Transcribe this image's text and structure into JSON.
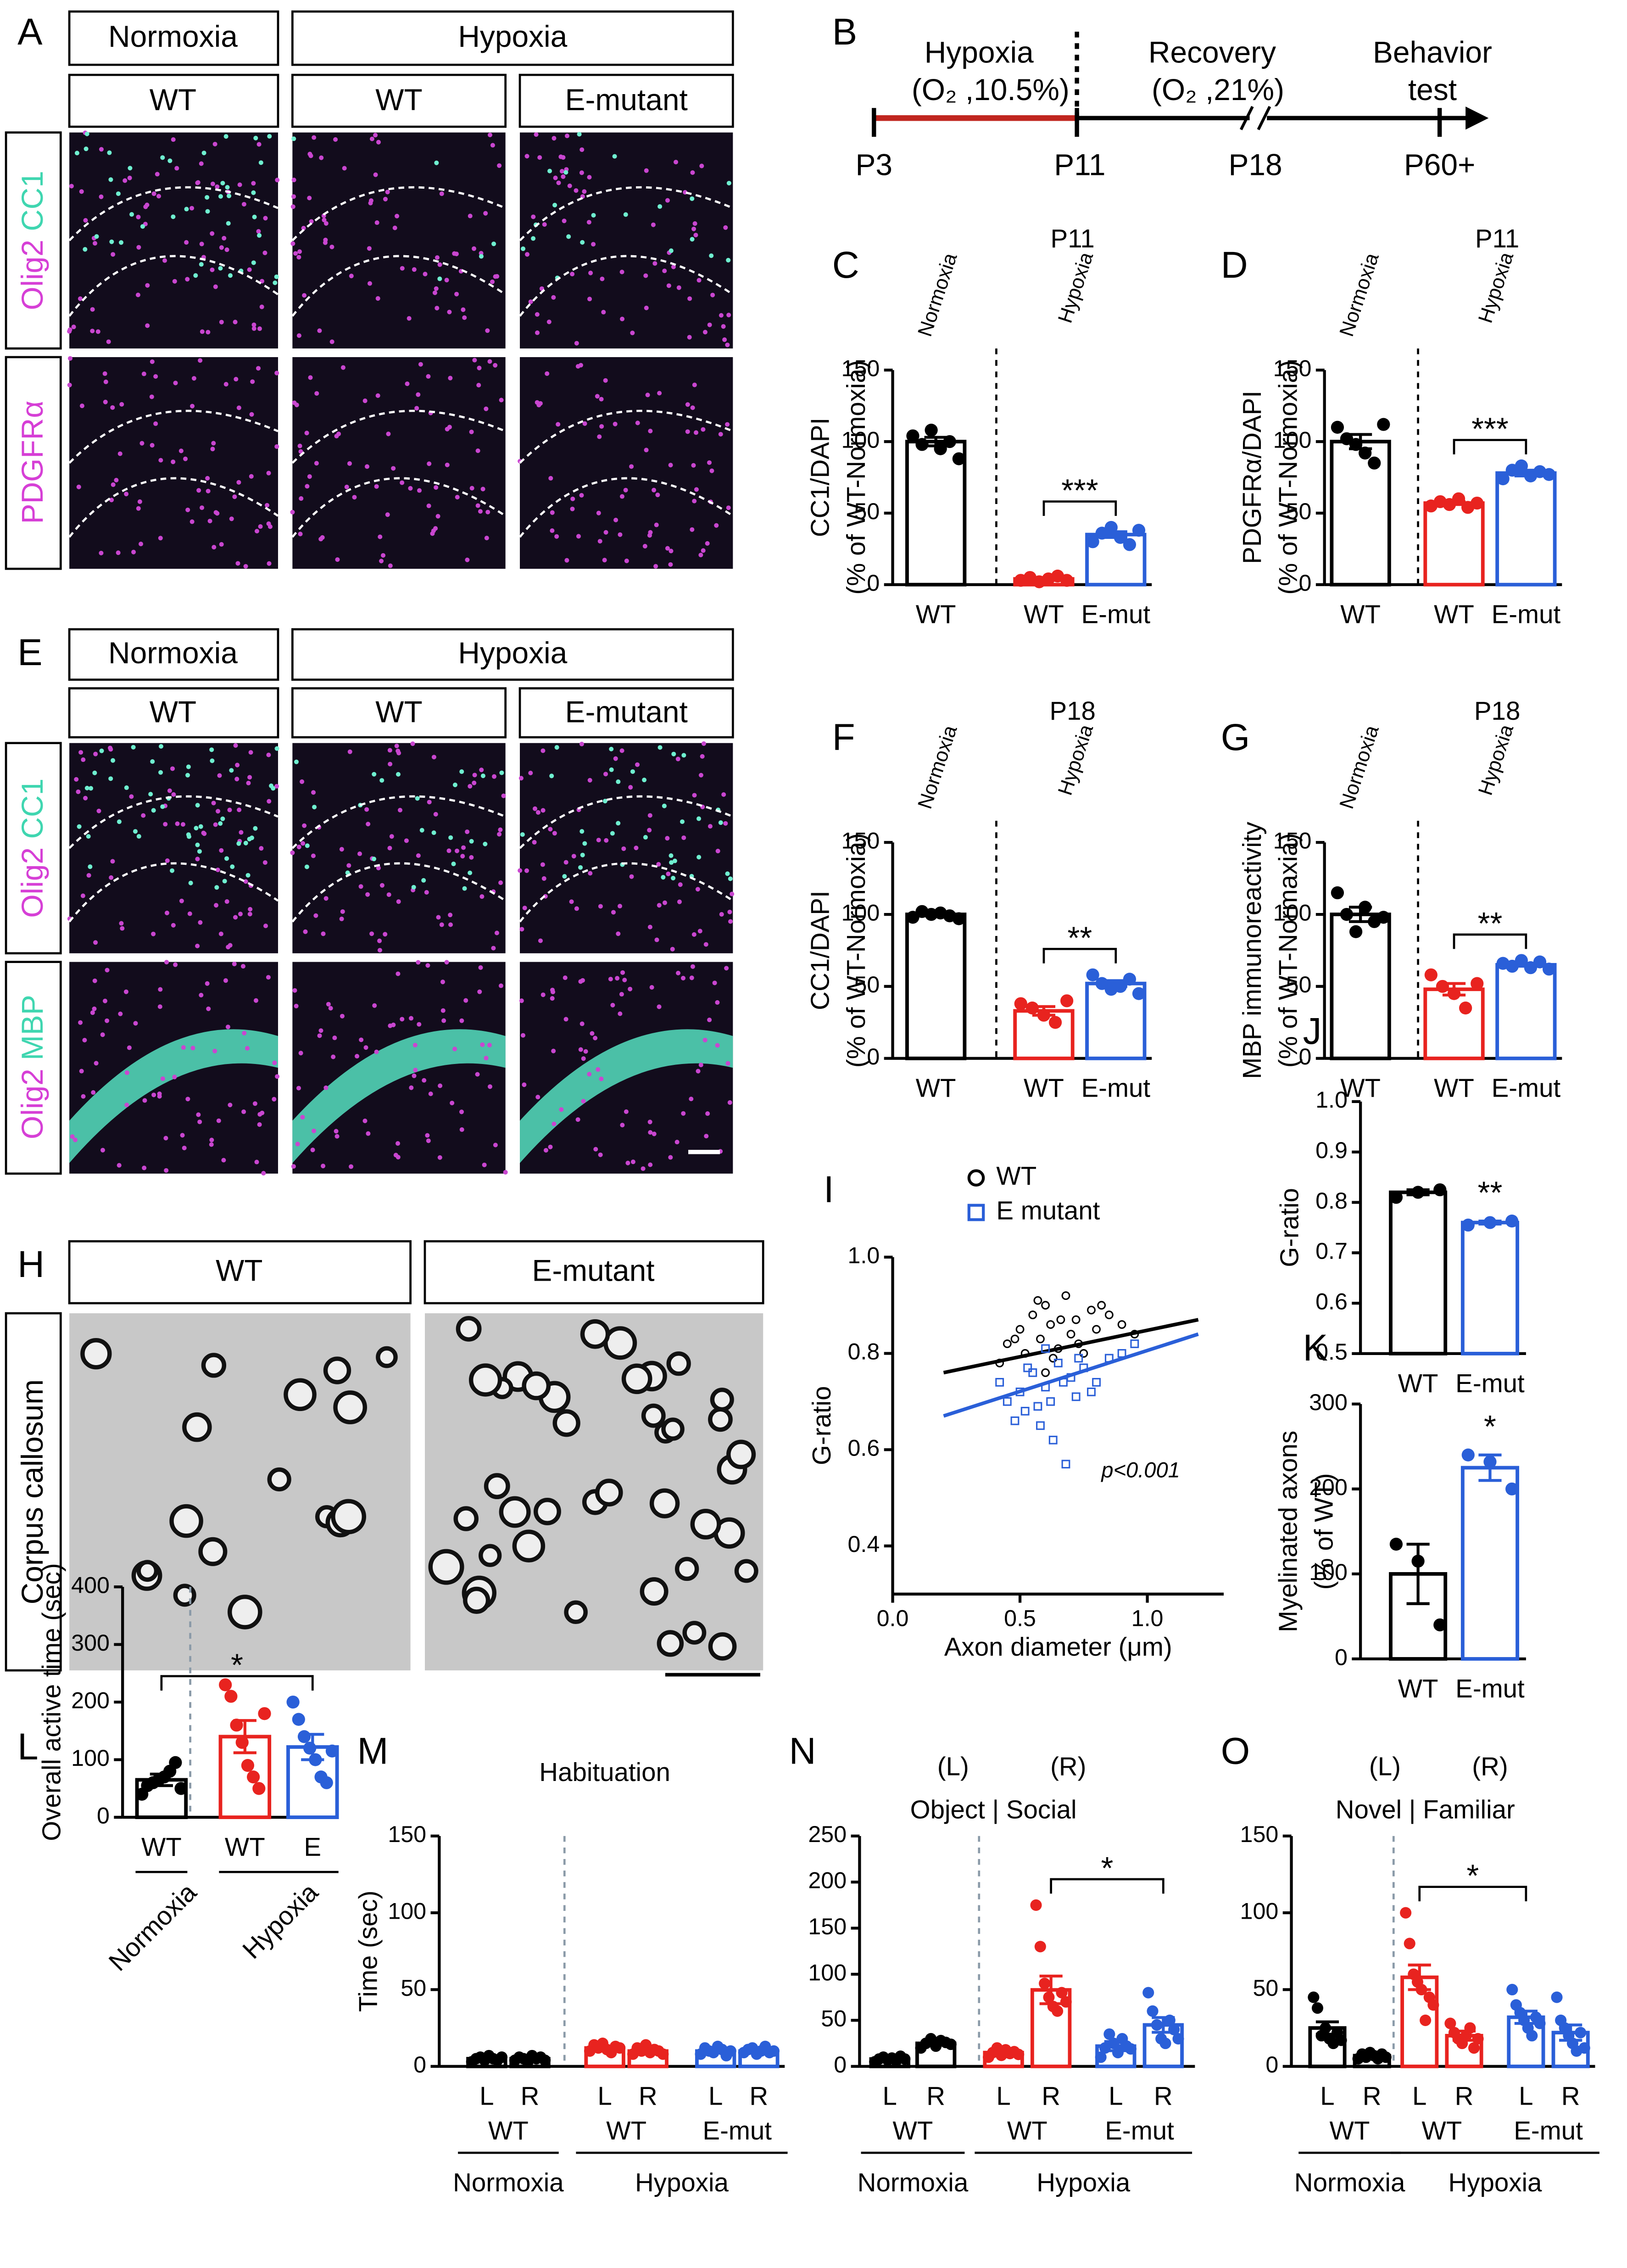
{
  "figure": {
    "A": {
      "label": "A",
      "headers": [
        "Normoxia",
        "Hypoxia"
      ],
      "subheaders": [
        "WT",
        "WT",
        "E-mutant"
      ],
      "rows": [
        [
          "Olig2",
          "CC1"
        ],
        [
          "PDGFRα"
        ]
      ]
    },
    "B": {
      "label": "B",
      "phases": [
        [
          "Hypoxia",
          "(O₂ ,10.5%)"
        ],
        [
          "Recovery",
          "(O₂ ,21%)"
        ],
        [
          "Behavior",
          "test"
        ]
      ],
      "days": [
        "P3",
        "P11",
        "P18",
        "P60+"
      ]
    },
    "E": {
      "label": "E",
      "headers": [
        "Normoxia",
        "Hypoxia"
      ],
      "subheaders": [
        "WT",
        "WT",
        "E-mutant"
      ],
      "rows": [
        [
          "Olig2",
          "CC1"
        ],
        [
          "Olig2",
          "MBP"
        ]
      ]
    },
    "H": {
      "label": "H",
      "headers": [
        "WT",
        "E-mutant"
      ],
      "side": "Corpus callosum"
    }
  },
  "chart_data": [
    {
      "type": "dotbar",
      "label": "C",
      "title": "P11",
      "ylabel": [
        "CC1/DAPI",
        "(% of WT-Normoxia)"
      ],
      "ylim": [
        0,
        150
      ],
      "yticks": [
        0,
        50,
        100,
        150
      ],
      "categories": [
        "WT",
        "WT",
        "E-mut"
      ],
      "conditions": [
        "Normoxia",
        "Hypoxia"
      ],
      "colors": [
        "#000000",
        "#e8231f",
        "#2a5fd8"
      ],
      "values": [
        100,
        4,
        35
      ],
      "errors": [
        3,
        1,
        2
      ],
      "points": [
        [
          104,
          98,
          108,
          95,
          100,
          88
        ],
        [
          3,
          5,
          2,
          4,
          6,
          3
        ],
        [
          30,
          36,
          40,
          33,
          28,
          38
        ]
      ],
      "significance": {
        "text": "***",
        "between": [
          1,
          2
        ]
      }
    },
    {
      "type": "dotbar",
      "label": "D",
      "title": "P11",
      "ylabel": [
        "PDGFRα/DAPI",
        "(% of WT-Normoxia)"
      ],
      "ylim": [
        0,
        150
      ],
      "yticks": [
        0,
        50,
        100,
        150
      ],
      "categories": [
        "WT",
        "WT",
        "E-mut"
      ],
      "conditions": [
        "Normoxia",
        "Hypoxia"
      ],
      "colors": [
        "#000000",
        "#e8231f",
        "#2a5fd8"
      ],
      "values": [
        100,
        57,
        78
      ],
      "errors": [
        5,
        1,
        2
      ],
      "points": [
        [
          110,
          102,
          98,
          92,
          85,
          112
        ],
        [
          55,
          58,
          56,
          60,
          54,
          57
        ],
        [
          74,
          80,
          83,
          76,
          79,
          77
        ]
      ],
      "significance": {
        "text": "***",
        "between": [
          1,
          2
        ]
      }
    },
    {
      "type": "dotbar",
      "label": "F",
      "title": "P18",
      "ylabel": [
        "CC1/DAPI",
        "(% of WT-Normoxia)"
      ],
      "ylim": [
        0,
        150
      ],
      "yticks": [
        0,
        50,
        100,
        150
      ],
      "categories": [
        "WT",
        "WT",
        "E-mut"
      ],
      "conditions": [
        "Normoxia",
        "Hypoxia"
      ],
      "colors": [
        "#000000",
        "#e8231f",
        "#2a5fd8"
      ],
      "values": [
        100,
        33,
        52
      ],
      "errors": [
        1,
        3,
        2
      ],
      "points": [
        [
          98,
          102,
          100,
          101,
          99,
          97
        ],
        [
          38,
          35,
          30,
          25,
          40
        ],
        [
          58,
          52,
          48,
          50,
          55,
          45
        ]
      ],
      "significance": {
        "text": "**",
        "between": [
          1,
          2
        ]
      }
    },
    {
      "type": "dotbar",
      "label": "G",
      "title": "P18",
      "ylabel": [
        "MBP immunoreactivity",
        "(% of WT-Normaxia)"
      ],
      "ylim": [
        0,
        150
      ],
      "yticks": [
        0,
        50,
        100,
        150
      ],
      "categories": [
        "WT",
        "WT",
        "E-mut"
      ],
      "conditions": [
        "Normoxia",
        "Hypoxia"
      ],
      "colors": [
        "#000000",
        "#e8231f",
        "#2a5fd8"
      ],
      "values": [
        100,
        48,
        65
      ],
      "errors": [
        5,
        4,
        1
      ],
      "points": [
        [
          115,
          100,
          88,
          105,
          95,
          98
        ],
        [
          58,
          50,
          45,
          35,
          52
        ],
        [
          66,
          64,
          68,
          63,
          67,
          62
        ]
      ],
      "significance": {
        "text": "**",
        "between": [
          1,
          2
        ]
      }
    },
    {
      "type": "scatter",
      "label": "I",
      "xlabel": "Axon diameter (μm)",
      "ylabel": "G-ratio",
      "annotation": "p<0.001",
      "xlim": [
        0,
        1.3
      ],
      "ylim": [
        0.3,
        1.0
      ],
      "xticks": [
        {
          "value": 0,
          "label": "0.0"
        },
        0.5,
        {
          "value": 1,
          "label": "1.0"
        }
      ],
      "yticks": [
        0.4,
        0.6,
        0.8,
        {
          "value": 1,
          "label": "1.0"
        }
      ],
      "series": [
        {
          "name": "WT",
          "color": "#000000",
          "marker": "circle",
          "x": [
            0.45,
            0.5,
            0.52,
            0.55,
            0.58,
            0.6,
            0.62,
            0.65,
            0.68,
            0.7,
            0.72,
            0.75,
            0.78,
            0.8,
            0.85,
            0.9,
            0.42,
            0.48,
            0.63,
            0.66,
            0.73,
            0.57,
            0.95,
            0.82,
            0.6
          ],
          "y": [
            0.82,
            0.85,
            0.8,
            0.88,
            0.83,
            0.9,
            0.86,
            0.81,
            0.92,
            0.84,
            0.87,
            0.8,
            0.89,
            0.85,
            0.88,
            0.86,
            0.78,
            0.83,
            0.79,
            0.87,
            0.82,
            0.91,
            0.84,
            0.9,
            0.76
          ],
          "fit": {
            "x": [
              0.2,
              1.2
            ],
            "y": [
              0.76,
              0.87
            ]
          }
        },
        {
          "name": "E mutant",
          "color": "#2a5fd8",
          "marker": "square",
          "x": [
            0.42,
            0.45,
            0.5,
            0.52,
            0.55,
            0.58,
            0.6,
            0.62,
            0.65,
            0.68,
            0.7,
            0.72,
            0.75,
            0.8,
            0.85,
            0.9,
            0.95,
            0.48,
            0.57,
            0.63,
            0.67,
            0.73,
            0.78,
            0.53,
            0.6
          ],
          "y": [
            0.74,
            0.7,
            0.72,
            0.68,
            0.76,
            0.65,
            0.73,
            0.7,
            0.78,
            0.57,
            0.75,
            0.71,
            0.77,
            0.74,
            0.79,
            0.8,
            0.82,
            0.66,
            0.69,
            0.62,
            0.74,
            0.79,
            0.72,
            0.77,
            0.81
          ],
          "fit": {
            "x": [
              0.2,
              1.2
            ],
            "y": [
              0.67,
              0.84
            ]
          }
        }
      ]
    },
    {
      "type": "dotbar",
      "label": "J",
      "ylabel": [
        "G-ratio"
      ],
      "ylim": [
        0.5,
        1.0
      ],
      "yticks": [
        0.5,
        0.6,
        0.7,
        0.8,
        0.9,
        {
          "value": 1,
          "label": "1.0"
        }
      ],
      "categories": [
        "WT",
        "E-mut"
      ],
      "colors": [
        "#000000",
        "#2a5fd8"
      ],
      "values": [
        0.82,
        0.76
      ],
      "errors": [
        0.005,
        0.003
      ],
      "points": [
        [
          0.81,
          0.82,
          0.825
        ],
        [
          0.755,
          0.76,
          0.763
        ]
      ],
      "significance": {
        "text": "**",
        "over": 1
      }
    },
    {
      "type": "dotbar",
      "label": "K",
      "ylabel": [
        "Myelinated axons",
        "(% of WT)"
      ],
      "ylim": [
        0,
        300
      ],
      "yticks": [
        0,
        100,
        200,
        300
      ],
      "categories": [
        "WT",
        "E-mut"
      ],
      "colors": [
        "#000000",
        "#2a5fd8"
      ],
      "values": [
        100,
        225
      ],
      "errors": [
        35,
        15
      ],
      "points": [
        [
          135,
          115,
          40
        ],
        [
          240,
          232,
          200
        ]
      ],
      "significance": {
        "text": "*",
        "over": 1
      }
    },
    {
      "type": "dotbar",
      "label": "L",
      "ylabel": [
        "Overall active time (sec)"
      ],
      "ylim": [
        0,
        400
      ],
      "yticks": [
        0,
        100,
        200,
        300,
        400
      ],
      "categories": [
        "WT",
        "WT",
        "E"
      ],
      "conditions": [
        "Normoxia",
        "Hypoxia"
      ],
      "colors": [
        "#000000",
        "#e8231f",
        "#2a5fd8"
      ],
      "values": [
        65,
        140,
        122
      ],
      "errors": [
        10,
        28,
        22
      ],
      "points": [
        [
          40,
          55,
          60,
          65,
          70,
          80,
          95,
          50
        ],
        [
          230,
          210,
          160,
          130,
          90,
          70,
          50,
          180
        ],
        [
          200,
          170,
          140,
          120,
          100,
          70,
          60,
          115
        ]
      ],
      "significance": {
        "text": "*",
        "between": [
          0,
          2
        ]
      }
    },
    {
      "type": "dotbar",
      "label": "M",
      "title": "Habituation",
      "ylabel": [
        "Time (sec)"
      ],
      "ylim": [
        0,
        150
      ],
      "yticks": [
        0,
        50,
        100,
        150
      ],
      "categories": [
        "L",
        "R",
        "L",
        "R",
        "L",
        "R"
      ],
      "groups": [
        "WT",
        "WT",
        "E-mut"
      ],
      "conditions": [
        "Normoxia",
        "Hypoxia"
      ],
      "colors": [
        "#000000",
        "#000000",
        "#e8231f",
        "#e8231f",
        "#2a5fd8",
        "#2a5fd8"
      ],
      "values": [
        5,
        5,
        12,
        10,
        10,
        10
      ],
      "errors": [
        1,
        1,
        1,
        1,
        1,
        1
      ],
      "points": [
        [
          3,
          5,
          6,
          4,
          7,
          5,
          4,
          6
        ],
        [
          4,
          6,
          5,
          3,
          7,
          5,
          6,
          4
        ],
        [
          10,
          14,
          12,
          15,
          11,
          9,
          13,
          12
        ],
        [
          8,
          12,
          10,
          14,
          9,
          11,
          10,
          8
        ],
        [
          8,
          12,
          10,
          9,
          13,
          11,
          7,
          10
        ],
        [
          9,
          11,
          12,
          8,
          10,
          13,
          9,
          10
        ]
      ]
    },
    {
      "type": "dotbar",
      "label": "N",
      "title": "Object | Social",
      "sides": [
        "(L)",
        "(R)"
      ],
      "ylim": [
        0,
        250
      ],
      "yticks": [
        0,
        50,
        100,
        150,
        200,
        250
      ],
      "categories": [
        "L",
        "R",
        "L",
        "R",
        "L",
        "R"
      ],
      "groups": [
        "WT",
        "WT",
        "E-mut"
      ],
      "conditions": [
        "Normoxia",
        "Hypoxia"
      ],
      "colors": [
        "#000000",
        "#000000",
        "#e8231f",
        "#e8231f",
        "#2a5fd8",
        "#2a5fd8"
      ],
      "values": [
        8,
        25,
        15,
        83,
        22,
        45
      ],
      "errors": [
        1,
        2,
        2,
        15,
        5,
        8
      ],
      "points": [
        [
          5,
          8,
          10,
          7,
          9,
          6,
          11,
          8
        ],
        [
          20,
          25,
          30,
          22,
          28,
          26,
          24
        ],
        [
          10,
          15,
          20,
          12,
          18,
          14,
          16,
          13
        ],
        [
          175,
          130,
          90,
          75,
          65,
          60,
          80,
          70
        ],
        [
          10,
          20,
          35,
          25,
          15,
          30,
          22,
          19
        ],
        [
          80,
          60,
          45,
          30,
          25,
          50,
          40,
          30
        ]
      ],
      "significance": {
        "text": "*",
        "between": [
          3,
          5
        ]
      }
    },
    {
      "type": "dotbar",
      "label": "O",
      "title": "Novel | Familiar",
      "sides": [
        "(L)",
        "(R)"
      ],
      "ylim": [
        0,
        150
      ],
      "yticks": [
        0,
        50,
        100,
        150
      ],
      "categories": [
        "L",
        "R",
        "L",
        "R",
        "L",
        "R"
      ],
      "groups": [
        "WT",
        "WT",
        "E-mut"
      ],
      "conditions": [
        "Normoxia",
        "Hypoxia"
      ],
      "colors": [
        "#000000",
        "#000000",
        "#e8231f",
        "#e8231f",
        "#2a5fd8",
        "#2a5fd8"
      ],
      "values": [
        25,
        7,
        58,
        20,
        32,
        22
      ],
      "errors": [
        4,
        1,
        8,
        3,
        4,
        5
      ],
      "points": [
        [
          45,
          38,
          20,
          25,
          18,
          15,
          22,
          17
        ],
        [
          5,
          8,
          6,
          9,
          7,
          5,
          8,
          6
        ],
        [
          100,
          80,
          60,
          55,
          50,
          30,
          45,
          40
        ],
        [
          28,
          22,
          18,
          15,
          20,
          25,
          12,
          18
        ],
        [
          50,
          40,
          35,
          30,
          25,
          20,
          32,
          28
        ],
        [
          45,
          30,
          25,
          20,
          15,
          10,
          22,
          12
        ]
      ],
      "significance": {
        "text": "*",
        "between": [
          2,
          4
        ]
      }
    }
  ]
}
